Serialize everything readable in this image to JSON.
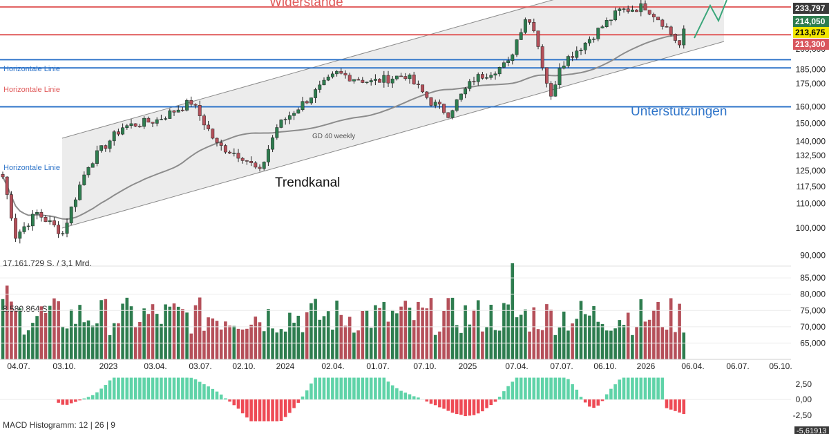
{
  "chart_data": {
    "type": "candlestick",
    "price_axis": {
      "scale": "log",
      "ylim": [
        88000,
        240000
      ],
      "ticks": [
        "90,000",
        "100,000",
        "110,000",
        "117,500",
        "125,000",
        "132,500",
        "140,000",
        "150,000",
        "160,000",
        "175,000",
        "185,000",
        "200,000"
      ]
    },
    "price_badges": [
      {
        "label": "233,797",
        "value": 233797,
        "color": "#3a3a3a",
        "text_color": "#ffffff"
      },
      {
        "label": "214,050",
        "value": 214050,
        "color": "#2e7d4f",
        "text_color": "#ffffff"
      },
      {
        "label": "213,675",
        "value": 213675,
        "color": "#f2e600",
        "text_color": "#000000"
      },
      {
        "label": "213,300",
        "value": 213300,
        "color": "#d9565e",
        "text_color": "#ffffff"
      }
    ],
    "horizontal_lines": [
      {
        "value": 235500,
        "color": "#e05a5a"
      },
      {
        "value": 211500,
        "color": "#e05a5a"
      },
      {
        "value": 192000,
        "color": "#2e74c9"
      },
      {
        "value": 186000,
        "color": "#2e74c9"
      },
      {
        "value": 160000,
        "color": "#2e74c9"
      }
    ],
    "annotations": {
      "widerstaende": "Widerstände",
      "unterstuetzungen": "Unterstützungen",
      "trendkanal": "Trendkanal",
      "gd40": "GD 40 weekly",
      "hl1": "Horizontale Linie",
      "hl2": "Horizontale Linie",
      "hl3": "Horizontale Linie"
    },
    "x_ticks": [
      "04.07.",
      "03.10.",
      "2023",
      "03.04.",
      "03.07.",
      "02.10.",
      "2024",
      "02.04.",
      "01.07.",
      "07.10.",
      "2025",
      "07.04.",
      "07.07.",
      "06.10.",
      "2026",
      "06.04.",
      "06.07.",
      "05.10."
    ],
    "volume": {
      "label_total": "17.161.729 S. / 3,1 Mrd.",
      "label_avg": "8.580.864 S.",
      "ticks": [
        "85,000",
        "80,000",
        "75,000",
        "70,000",
        "65,000"
      ]
    },
    "macd": {
      "label": "MACD Histogramm: 12 | 26 | 9",
      "ticks": [
        "2,50",
        "0,00",
        "-2,50"
      ],
      "last_badge": "-5,61913"
    },
    "colors": {
      "up": "#2e7d4f",
      "down": "#b5505a",
      "macd_pos": "#5fd3a8",
      "macd_neg": "#ee4a55",
      "channel_fill": "#ececec",
      "gd_line": "#8c8c8c"
    }
  }
}
